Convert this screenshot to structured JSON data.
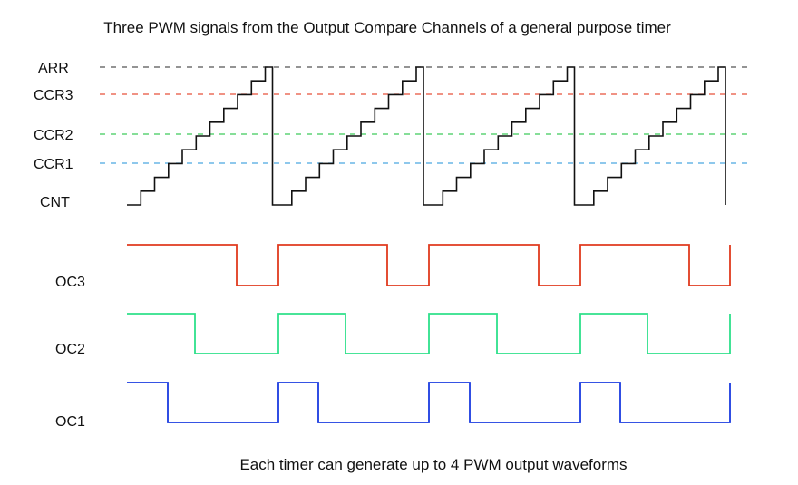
{
  "title": "Three PWM signals from the Output Compare Channels of a general purpose timer",
  "caption": "Each timer can generate up to 4 PWM output waveforms",
  "levels": {
    "arr": {
      "label": "ARR",
      "color": "#555555"
    },
    "ccr3": {
      "label": "CCR3",
      "color": "#e8503a"
    },
    "ccr2": {
      "label": "CCR2",
      "color": "#3ec95a"
    },
    "ccr1": {
      "label": "CCR1",
      "color": "#4aa8e0"
    },
    "cnt": {
      "label": "CNT"
    }
  },
  "counter": {
    "periods": 4,
    "steps_per_period": 10
  },
  "signals": [
    {
      "id": "oc3",
      "label": "OC3",
      "color": "#e03a1e",
      "high_steps": 7
    },
    {
      "id": "oc2",
      "label": "OC2",
      "color": "#2ee08a",
      "high_steps": 4
    },
    {
      "id": "oc1",
      "label": "OC1",
      "color": "#1a3be0",
      "high_steps": 2
    }
  ]
}
